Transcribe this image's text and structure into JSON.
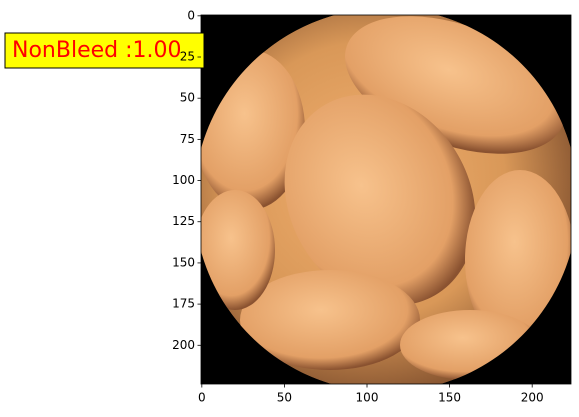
{
  "chart_data": {
    "type": "image",
    "annotation": "NonBleed :1.00",
    "xlim": [
      -0.5,
      223.5
    ],
    "ylim": [
      223.5,
      -0.5
    ],
    "xticks": [
      0,
      50,
      100,
      150,
      200
    ],
    "yticks": [
      0,
      25,
      50,
      75,
      100,
      125,
      150,
      175,
      200
    ]
  }
}
